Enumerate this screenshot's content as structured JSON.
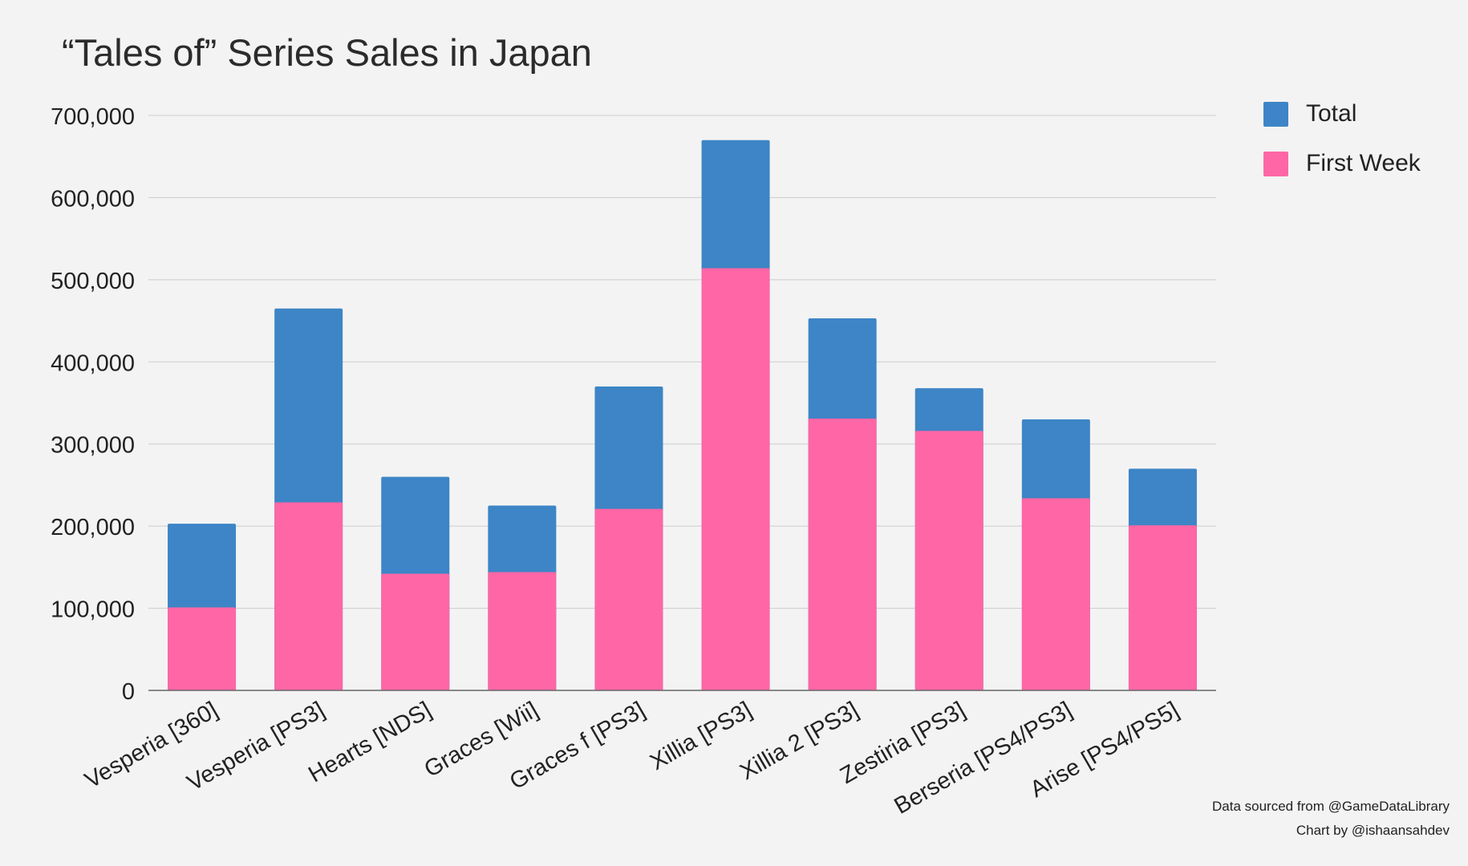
{
  "chart_data": {
    "type": "bar",
    "stacked": true,
    "title": "“Tales of” Series Sales in Japan",
    "xlabel": "",
    "ylabel": "",
    "ylim": [
      0,
      700000
    ],
    "yticks": [
      0,
      100000,
      200000,
      300000,
      400000,
      500000,
      600000,
      700000
    ],
    "ytick_labels": [
      "0",
      "100,000",
      "200,000",
      "300,000",
      "400,000",
      "500,000",
      "600,000",
      "700,000"
    ],
    "grid": true,
    "legend_position": "top-right",
    "categories": [
      "Vesperia [360]",
      "Vesperia [PS3]",
      "Hearts [NDS]",
      "Graces [Wii]",
      "Graces f [PS3]",
      "Xillia [PS3]",
      "Xillia 2 [PS3]",
      "Zestiria [PS3]",
      "Berseria [PS4/PS3]",
      "Arise [PS4/PS5]"
    ],
    "series": [
      {
        "name": "First Week",
        "color": "#ff66a6",
        "values": [
          101000,
          229000,
          142000,
          144000,
          221000,
          514000,
          331000,
          316000,
          234000,
          201000
        ]
      },
      {
        "name": "Total",
        "color": "#3d85c6",
        "values": [
          203000,
          465000,
          260000,
          225000,
          370000,
          670000,
          453000,
          368000,
          330000,
          270000
        ]
      }
    ]
  },
  "legend": {
    "items": [
      {
        "label": "Total",
        "color": "#3d85c6"
      },
      {
        "label": "First Week",
        "color": "#ff66a6"
      }
    ]
  },
  "credits": {
    "source": "Data sourced from @GameDataLibrary",
    "author": "Chart by @ishaansahdev"
  }
}
